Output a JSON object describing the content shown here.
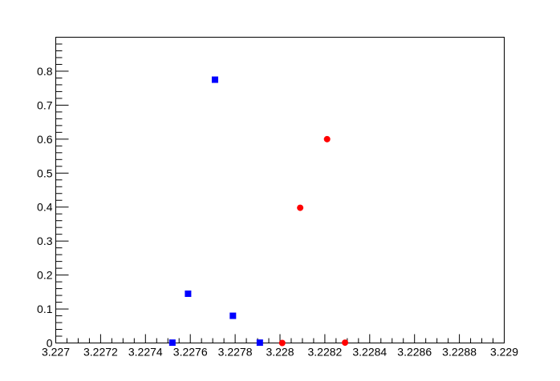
{
  "chart_data": {
    "type": "scatter",
    "title": "",
    "xlabel": "",
    "ylabel": "",
    "xlim": [
      3.227,
      3.229
    ],
    "ylim": [
      0,
      0.9
    ],
    "grid": false,
    "legend": "none",
    "x_ticks": [
      {
        "value": 3.227,
        "label": "3.227"
      },
      {
        "value": 3.2272,
        "label": "3.2272"
      },
      {
        "value": 3.2274,
        "label": "3.2274"
      },
      {
        "value": 3.2276,
        "label": "3.2276"
      },
      {
        "value": 3.2278,
        "label": "3.2278"
      },
      {
        "value": 3.228,
        "label": "3.228"
      },
      {
        "value": 3.2282,
        "label": "3.2282"
      },
      {
        "value": 3.2284,
        "label": "3.2284"
      },
      {
        "value": 3.2286,
        "label": "3.2286"
      },
      {
        "value": 3.2288,
        "label": "3.2288"
      },
      {
        "value": 3.229,
        "label": "3.229"
      }
    ],
    "y_ticks": [
      {
        "value": 0,
        "label": "0"
      },
      {
        "value": 0.1,
        "label": "0.1"
      },
      {
        "value": 0.2,
        "label": "0.2"
      },
      {
        "value": 0.3,
        "label": "0.3"
      },
      {
        "value": 0.4,
        "label": "0.4"
      },
      {
        "value": 0.5,
        "label": "0.5"
      },
      {
        "value": 0.6,
        "label": "0.6"
      },
      {
        "value": 0.7,
        "label": "0.7"
      },
      {
        "value": 0.8,
        "label": "0.8"
      }
    ],
    "series": [
      {
        "marker": "square",
        "color": "#0000ff",
        "points": [
          {
            "x": 3.22752,
            "y": 0.001
          },
          {
            "x": 3.22759,
            "y": 0.145
          },
          {
            "x": 3.22771,
            "y": 0.775
          },
          {
            "x": 3.22779,
            "y": 0.08
          },
          {
            "x": 3.22791,
            "y": 0.001
          }
        ]
      },
      {
        "marker": "circle",
        "color": "#ff0000",
        "points": [
          {
            "x": 3.22801,
            "y": 0.0
          },
          {
            "x": 3.22809,
            "y": 0.398
          },
          {
            "x": 3.22821,
            "y": 0.6
          },
          {
            "x": 3.22829,
            "y": 0.001
          }
        ]
      }
    ]
  }
}
